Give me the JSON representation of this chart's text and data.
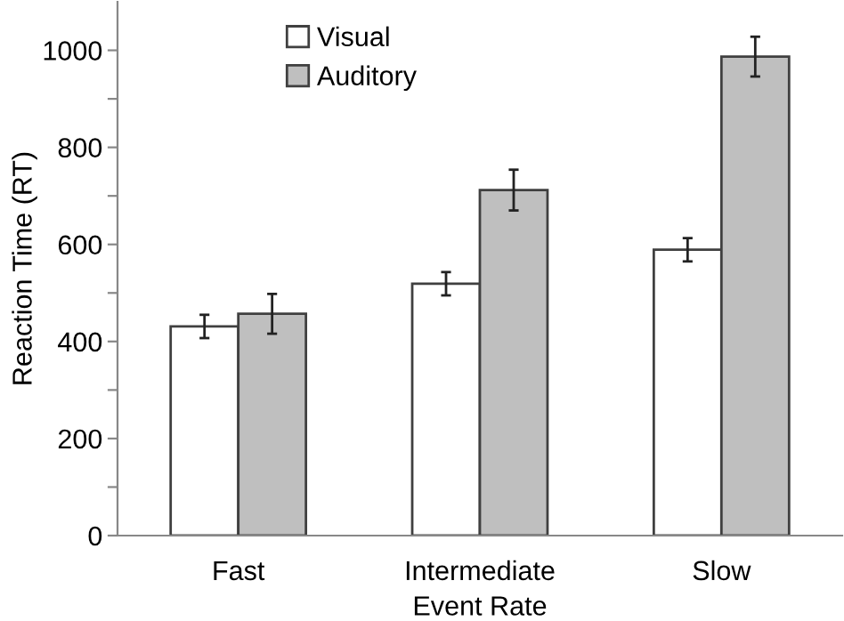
{
  "chart_data": {
    "type": "bar",
    "xlabel": "Event Rate",
    "ylabel": "Reaction Time (RT)",
    "categories": [
      "Fast",
      "Intermediate",
      "Slow"
    ],
    "series": [
      {
        "name": "Visual",
        "color": "#ffffff",
        "values": [
          431,
          519,
          589
        ],
        "errors": [
          24,
          24,
          24
        ]
      },
      {
        "name": "Auditory",
        "color": "#bfbfbf",
        "values": [
          457,
          712,
          987
        ],
        "errors": [
          41,
          42,
          41
        ]
      }
    ],
    "ylim": [
      0,
      1100
    ],
    "yticks": [
      0,
      {
        "value": 100,
        "label": null
      },
      200,
      {
        "value": 300,
        "label": null
      },
      400,
      {
        "value": 500,
        "label": null
      },
      600,
      {
        "value": 700,
        "label": null
      },
      800,
      {
        "value": 900,
        "label": null
      },
      1000
    ],
    "grid": false,
    "legend": "top left"
  }
}
